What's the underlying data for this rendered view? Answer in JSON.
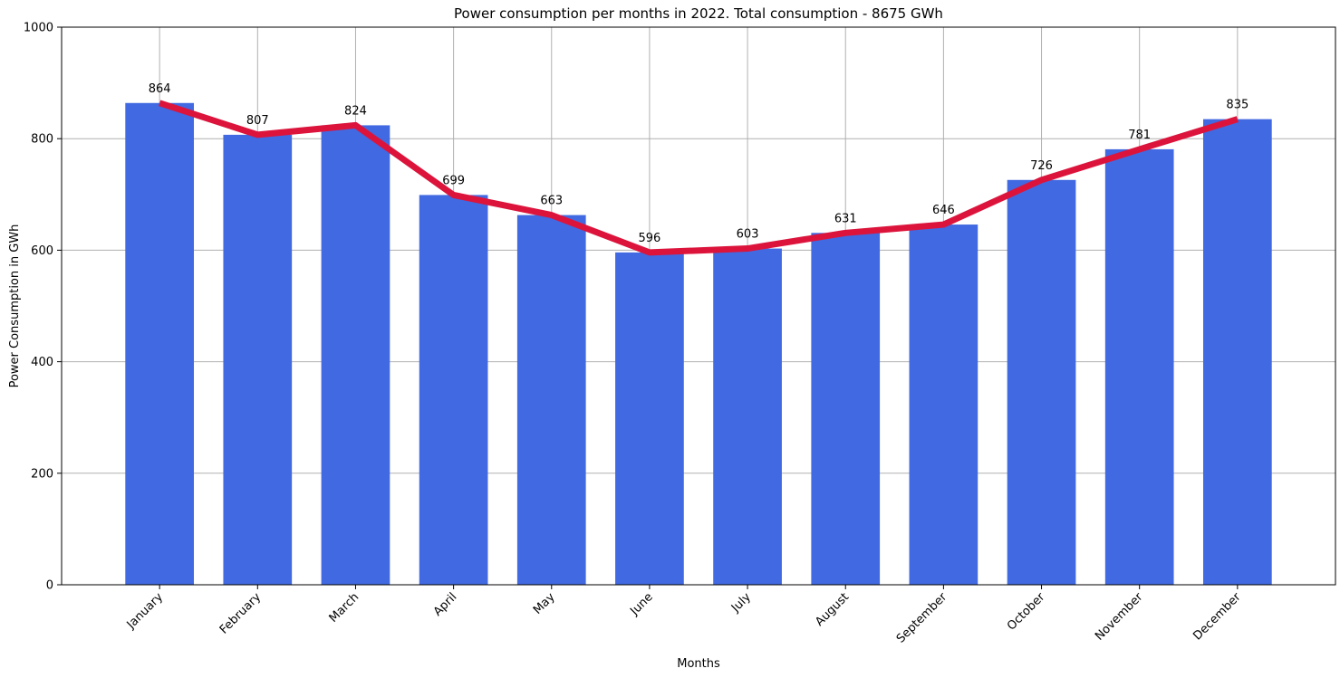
{
  "chart_data": {
    "type": "bar",
    "title": "Power consumption per months in 2022. Total consumption - 8675 GWh",
    "xlabel": "Months",
    "ylabel": "Power Consumption in GWh",
    "categories": [
      "January",
      "February",
      "March",
      "April",
      "May",
      "June",
      "July",
      "August",
      "September",
      "October",
      "November",
      "December"
    ],
    "values": [
      864,
      807,
      824,
      699,
      663,
      596,
      603,
      631,
      646,
      726,
      781,
      835
    ],
    "data_labels": [
      "864",
      "807",
      "824",
      "699",
      "663",
      "596",
      "603",
      "631",
      "646",
      "726",
      "781",
      "835"
    ],
    "overlay_line": {
      "type": "line",
      "values": [
        864,
        807,
        824,
        699,
        663,
        596,
        603,
        631,
        646,
        726,
        781,
        835
      ]
    },
    "ylim": [
      0,
      1000
    ],
    "yticks": [
      0,
      200,
      400,
      600,
      800,
      1000
    ],
    "ytick_labels": [
      "0",
      "200",
      "400",
      "600",
      "800",
      "1000"
    ],
    "grid": true,
    "colors": {
      "bar": "#4169e1",
      "line": "#dc143c",
      "grid": "#b0b0b0"
    }
  }
}
